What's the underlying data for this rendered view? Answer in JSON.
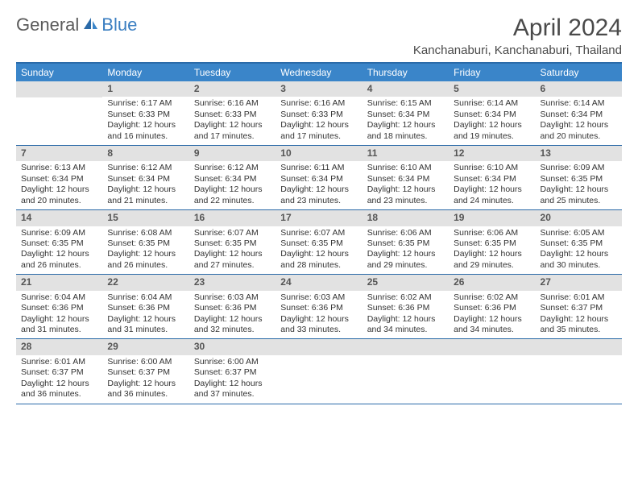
{
  "logo": {
    "text_general": "General",
    "text_blue": "Blue"
  },
  "header": {
    "month_title": "April 2024",
    "location": "Kanchanaburi, Kanchanaburi, Thailand"
  },
  "colors": {
    "header_bar": "#3a85c9",
    "header_border": "#2a6aa8",
    "daynum_bg": "#e2e2e2",
    "text": "#333333",
    "logo_gray": "#5a5a5a",
    "logo_blue": "#3a7ec1"
  },
  "day_names": [
    "Sunday",
    "Monday",
    "Tuesday",
    "Wednesday",
    "Thursday",
    "Friday",
    "Saturday"
  ],
  "weeks": [
    [
      {
        "empty": true
      },
      {
        "num": "1",
        "sunrise": "Sunrise: 6:17 AM",
        "sunset": "Sunset: 6:33 PM",
        "daylight1": "Daylight: 12 hours",
        "daylight2": "and 16 minutes."
      },
      {
        "num": "2",
        "sunrise": "Sunrise: 6:16 AM",
        "sunset": "Sunset: 6:33 PM",
        "daylight1": "Daylight: 12 hours",
        "daylight2": "and 17 minutes."
      },
      {
        "num": "3",
        "sunrise": "Sunrise: 6:16 AM",
        "sunset": "Sunset: 6:33 PM",
        "daylight1": "Daylight: 12 hours",
        "daylight2": "and 17 minutes."
      },
      {
        "num": "4",
        "sunrise": "Sunrise: 6:15 AM",
        "sunset": "Sunset: 6:34 PM",
        "daylight1": "Daylight: 12 hours",
        "daylight2": "and 18 minutes."
      },
      {
        "num": "5",
        "sunrise": "Sunrise: 6:14 AM",
        "sunset": "Sunset: 6:34 PM",
        "daylight1": "Daylight: 12 hours",
        "daylight2": "and 19 minutes."
      },
      {
        "num": "6",
        "sunrise": "Sunrise: 6:14 AM",
        "sunset": "Sunset: 6:34 PM",
        "daylight1": "Daylight: 12 hours",
        "daylight2": "and 20 minutes."
      }
    ],
    [
      {
        "num": "7",
        "sunrise": "Sunrise: 6:13 AM",
        "sunset": "Sunset: 6:34 PM",
        "daylight1": "Daylight: 12 hours",
        "daylight2": "and 20 minutes."
      },
      {
        "num": "8",
        "sunrise": "Sunrise: 6:12 AM",
        "sunset": "Sunset: 6:34 PM",
        "daylight1": "Daylight: 12 hours",
        "daylight2": "and 21 minutes."
      },
      {
        "num": "9",
        "sunrise": "Sunrise: 6:12 AM",
        "sunset": "Sunset: 6:34 PM",
        "daylight1": "Daylight: 12 hours",
        "daylight2": "and 22 minutes."
      },
      {
        "num": "10",
        "sunrise": "Sunrise: 6:11 AM",
        "sunset": "Sunset: 6:34 PM",
        "daylight1": "Daylight: 12 hours",
        "daylight2": "and 23 minutes."
      },
      {
        "num": "11",
        "sunrise": "Sunrise: 6:10 AM",
        "sunset": "Sunset: 6:34 PM",
        "daylight1": "Daylight: 12 hours",
        "daylight2": "and 23 minutes."
      },
      {
        "num": "12",
        "sunrise": "Sunrise: 6:10 AM",
        "sunset": "Sunset: 6:34 PM",
        "daylight1": "Daylight: 12 hours",
        "daylight2": "and 24 minutes."
      },
      {
        "num": "13",
        "sunrise": "Sunrise: 6:09 AM",
        "sunset": "Sunset: 6:35 PM",
        "daylight1": "Daylight: 12 hours",
        "daylight2": "and 25 minutes."
      }
    ],
    [
      {
        "num": "14",
        "sunrise": "Sunrise: 6:09 AM",
        "sunset": "Sunset: 6:35 PM",
        "daylight1": "Daylight: 12 hours",
        "daylight2": "and 26 minutes."
      },
      {
        "num": "15",
        "sunrise": "Sunrise: 6:08 AM",
        "sunset": "Sunset: 6:35 PM",
        "daylight1": "Daylight: 12 hours",
        "daylight2": "and 26 minutes."
      },
      {
        "num": "16",
        "sunrise": "Sunrise: 6:07 AM",
        "sunset": "Sunset: 6:35 PM",
        "daylight1": "Daylight: 12 hours",
        "daylight2": "and 27 minutes."
      },
      {
        "num": "17",
        "sunrise": "Sunrise: 6:07 AM",
        "sunset": "Sunset: 6:35 PM",
        "daylight1": "Daylight: 12 hours",
        "daylight2": "and 28 minutes."
      },
      {
        "num": "18",
        "sunrise": "Sunrise: 6:06 AM",
        "sunset": "Sunset: 6:35 PM",
        "daylight1": "Daylight: 12 hours",
        "daylight2": "and 29 minutes."
      },
      {
        "num": "19",
        "sunrise": "Sunrise: 6:06 AM",
        "sunset": "Sunset: 6:35 PM",
        "daylight1": "Daylight: 12 hours",
        "daylight2": "and 29 minutes."
      },
      {
        "num": "20",
        "sunrise": "Sunrise: 6:05 AM",
        "sunset": "Sunset: 6:35 PM",
        "daylight1": "Daylight: 12 hours",
        "daylight2": "and 30 minutes."
      }
    ],
    [
      {
        "num": "21",
        "sunrise": "Sunrise: 6:04 AM",
        "sunset": "Sunset: 6:36 PM",
        "daylight1": "Daylight: 12 hours",
        "daylight2": "and 31 minutes."
      },
      {
        "num": "22",
        "sunrise": "Sunrise: 6:04 AM",
        "sunset": "Sunset: 6:36 PM",
        "daylight1": "Daylight: 12 hours",
        "daylight2": "and 31 minutes."
      },
      {
        "num": "23",
        "sunrise": "Sunrise: 6:03 AM",
        "sunset": "Sunset: 6:36 PM",
        "daylight1": "Daylight: 12 hours",
        "daylight2": "and 32 minutes."
      },
      {
        "num": "24",
        "sunrise": "Sunrise: 6:03 AM",
        "sunset": "Sunset: 6:36 PM",
        "daylight1": "Daylight: 12 hours",
        "daylight2": "and 33 minutes."
      },
      {
        "num": "25",
        "sunrise": "Sunrise: 6:02 AM",
        "sunset": "Sunset: 6:36 PM",
        "daylight1": "Daylight: 12 hours",
        "daylight2": "and 34 minutes."
      },
      {
        "num": "26",
        "sunrise": "Sunrise: 6:02 AM",
        "sunset": "Sunset: 6:36 PM",
        "daylight1": "Daylight: 12 hours",
        "daylight2": "and 34 minutes."
      },
      {
        "num": "27",
        "sunrise": "Sunrise: 6:01 AM",
        "sunset": "Sunset: 6:37 PM",
        "daylight1": "Daylight: 12 hours",
        "daylight2": "and 35 minutes."
      }
    ],
    [
      {
        "num": "28",
        "sunrise": "Sunrise: 6:01 AM",
        "sunset": "Sunset: 6:37 PM",
        "daylight1": "Daylight: 12 hours",
        "daylight2": "and 36 minutes."
      },
      {
        "num": "29",
        "sunrise": "Sunrise: 6:00 AM",
        "sunset": "Sunset: 6:37 PM",
        "daylight1": "Daylight: 12 hours",
        "daylight2": "and 36 minutes."
      },
      {
        "num": "30",
        "sunrise": "Sunrise: 6:00 AM",
        "sunset": "Sunset: 6:37 PM",
        "daylight1": "Daylight: 12 hours",
        "daylight2": "and 37 minutes."
      },
      {
        "empty": true
      },
      {
        "empty": true
      },
      {
        "empty": true
      },
      {
        "empty": true
      }
    ]
  ]
}
